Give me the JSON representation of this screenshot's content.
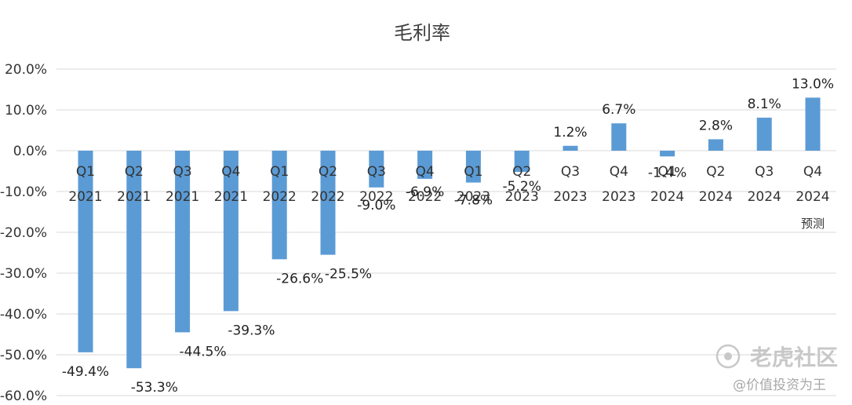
{
  "chart_data": {
    "type": "bar",
    "title": "毛利率",
    "categories": [
      [
        "Q1",
        "2021"
      ],
      [
        "Q2",
        "2021"
      ],
      [
        "Q3",
        "2021"
      ],
      [
        "Q4",
        "2021"
      ],
      [
        "Q1",
        "2022"
      ],
      [
        "Q2",
        "2022"
      ],
      [
        "Q3",
        "2022"
      ],
      [
        "Q4",
        "2022"
      ],
      [
        "Q1",
        "2023"
      ],
      [
        "Q2",
        "2023"
      ],
      [
        "Q3",
        "2023"
      ],
      [
        "Q4",
        "2023"
      ],
      [
        "Q1",
        "2024"
      ],
      [
        "Q2",
        "2024"
      ],
      [
        "Q3",
        "2024"
      ],
      [
        "Q4",
        "2024",
        "预测"
      ]
    ],
    "values": [
      -49.4,
      -53.3,
      -44.5,
      -39.3,
      -26.6,
      -25.5,
      -9.0,
      -6.9,
      -7.8,
      -5.2,
      1.2,
      6.7,
      -1.4,
      2.8,
      8.1,
      13.0
    ],
    "data_labels": [
      "-49.4%",
      "-53.3%",
      "-44.5%",
      "-39.3%",
      "-26.6%",
      "-25.5%",
      "-9.0%",
      "-6.9%",
      "-7.8%",
      "-5.2%",
      "1.2%",
      "6.7%",
      "-1.4%",
      "2.8%",
      "8.1%",
      "13.0%"
    ],
    "ylim": [
      -60,
      20
    ],
    "yticks": [
      20,
      10,
      0,
      -10,
      -20,
      -30,
      -40,
      -50,
      -60
    ],
    "ytick_labels": [
      "20.0%",
      "10.0%",
      "0.0%",
      "-10.0%",
      "-20.0%",
      "-30.0%",
      "-40.0%",
      "-50.0%",
      "-60.0%"
    ],
    "xlabel": "",
    "ylabel": "",
    "grid": true,
    "legend": "none",
    "bar_color": "#5b9bd5",
    "gridline_color": "#d9d9d9"
  },
  "watermark": {
    "brand": "老虎社区",
    "handle": "@价值投资为王"
  }
}
